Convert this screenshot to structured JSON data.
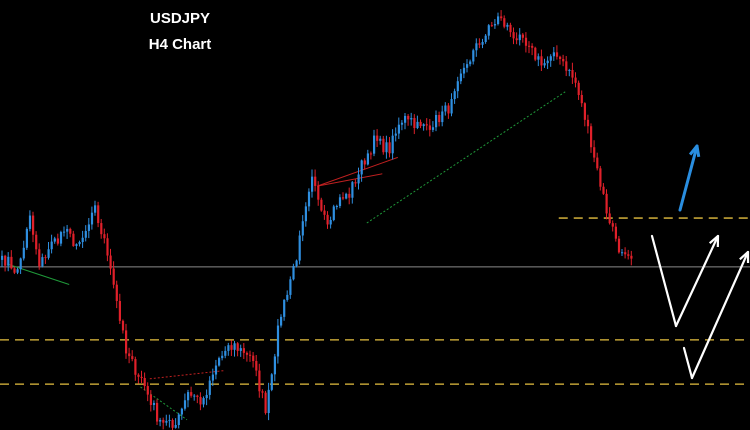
{
  "chart_data": {
    "type": "candlestick",
    "title": "USDJPY",
    "subtitle": "H4 Chart",
    "grid": false,
    "ylim": [
      0,
      100
    ],
    "colors": {
      "background": "#000000",
      "bull": "#2f8fe0",
      "bear": "#e0202a",
      "level": "#e6c040",
      "close_line": "#8a8a8a",
      "arrow_up_blue": "#2a8ee0",
      "arrow_white": "#ffffff",
      "trend_green": "#1f9a3a",
      "trend_red": "#c02020"
    },
    "anchors": [
      [
        0,
        42
      ],
      [
        5,
        38
      ],
      [
        9,
        51
      ],
      [
        12,
        39
      ],
      [
        15,
        44
      ],
      [
        20,
        48
      ],
      [
        25,
        44
      ],
      [
        30,
        53
      ],
      [
        35,
        40
      ],
      [
        40,
        18
      ],
      [
        45,
        12
      ],
      [
        50,
        3
      ],
      [
        55,
        0
      ],
      [
        60,
        9
      ],
      [
        65,
        6
      ],
      [
        70,
        17
      ],
      [
        75,
        20
      ],
      [
        80,
        18
      ],
      [
        85,
        5
      ],
      [
        90,
        28
      ],
      [
        95,
        42
      ],
      [
        100,
        60
      ],
      [
        105,
        51
      ],
      [
        108,
        55
      ],
      [
        112,
        57
      ],
      [
        116,
        64
      ],
      [
        120,
        70
      ],
      [
        125,
        68
      ],
      [
        130,
        77
      ],
      [
        135,
        73
      ],
      [
        140,
        75
      ],
      [
        145,
        79
      ],
      [
        150,
        89
      ],
      [
        155,
        95
      ],
      [
        160,
        100
      ],
      [
        165,
        96
      ],
      [
        170,
        92
      ],
      [
        175,
        89
      ],
      [
        180,
        91
      ],
      [
        185,
        84
      ],
      [
        190,
        70
      ],
      [
        195,
        53
      ],
      [
        200,
        42
      ],
      [
        203,
        40
      ]
    ],
    "levels": [
      {
        "y": 51.2,
        "from": 0.745,
        "style": "dashed"
      },
      {
        "y": 21.5,
        "from": 0,
        "style": "dashed"
      },
      {
        "y": 10.7,
        "from": 0,
        "style": "dashed"
      }
    ],
    "close_level": {
      "y": 39.3
    }
  }
}
